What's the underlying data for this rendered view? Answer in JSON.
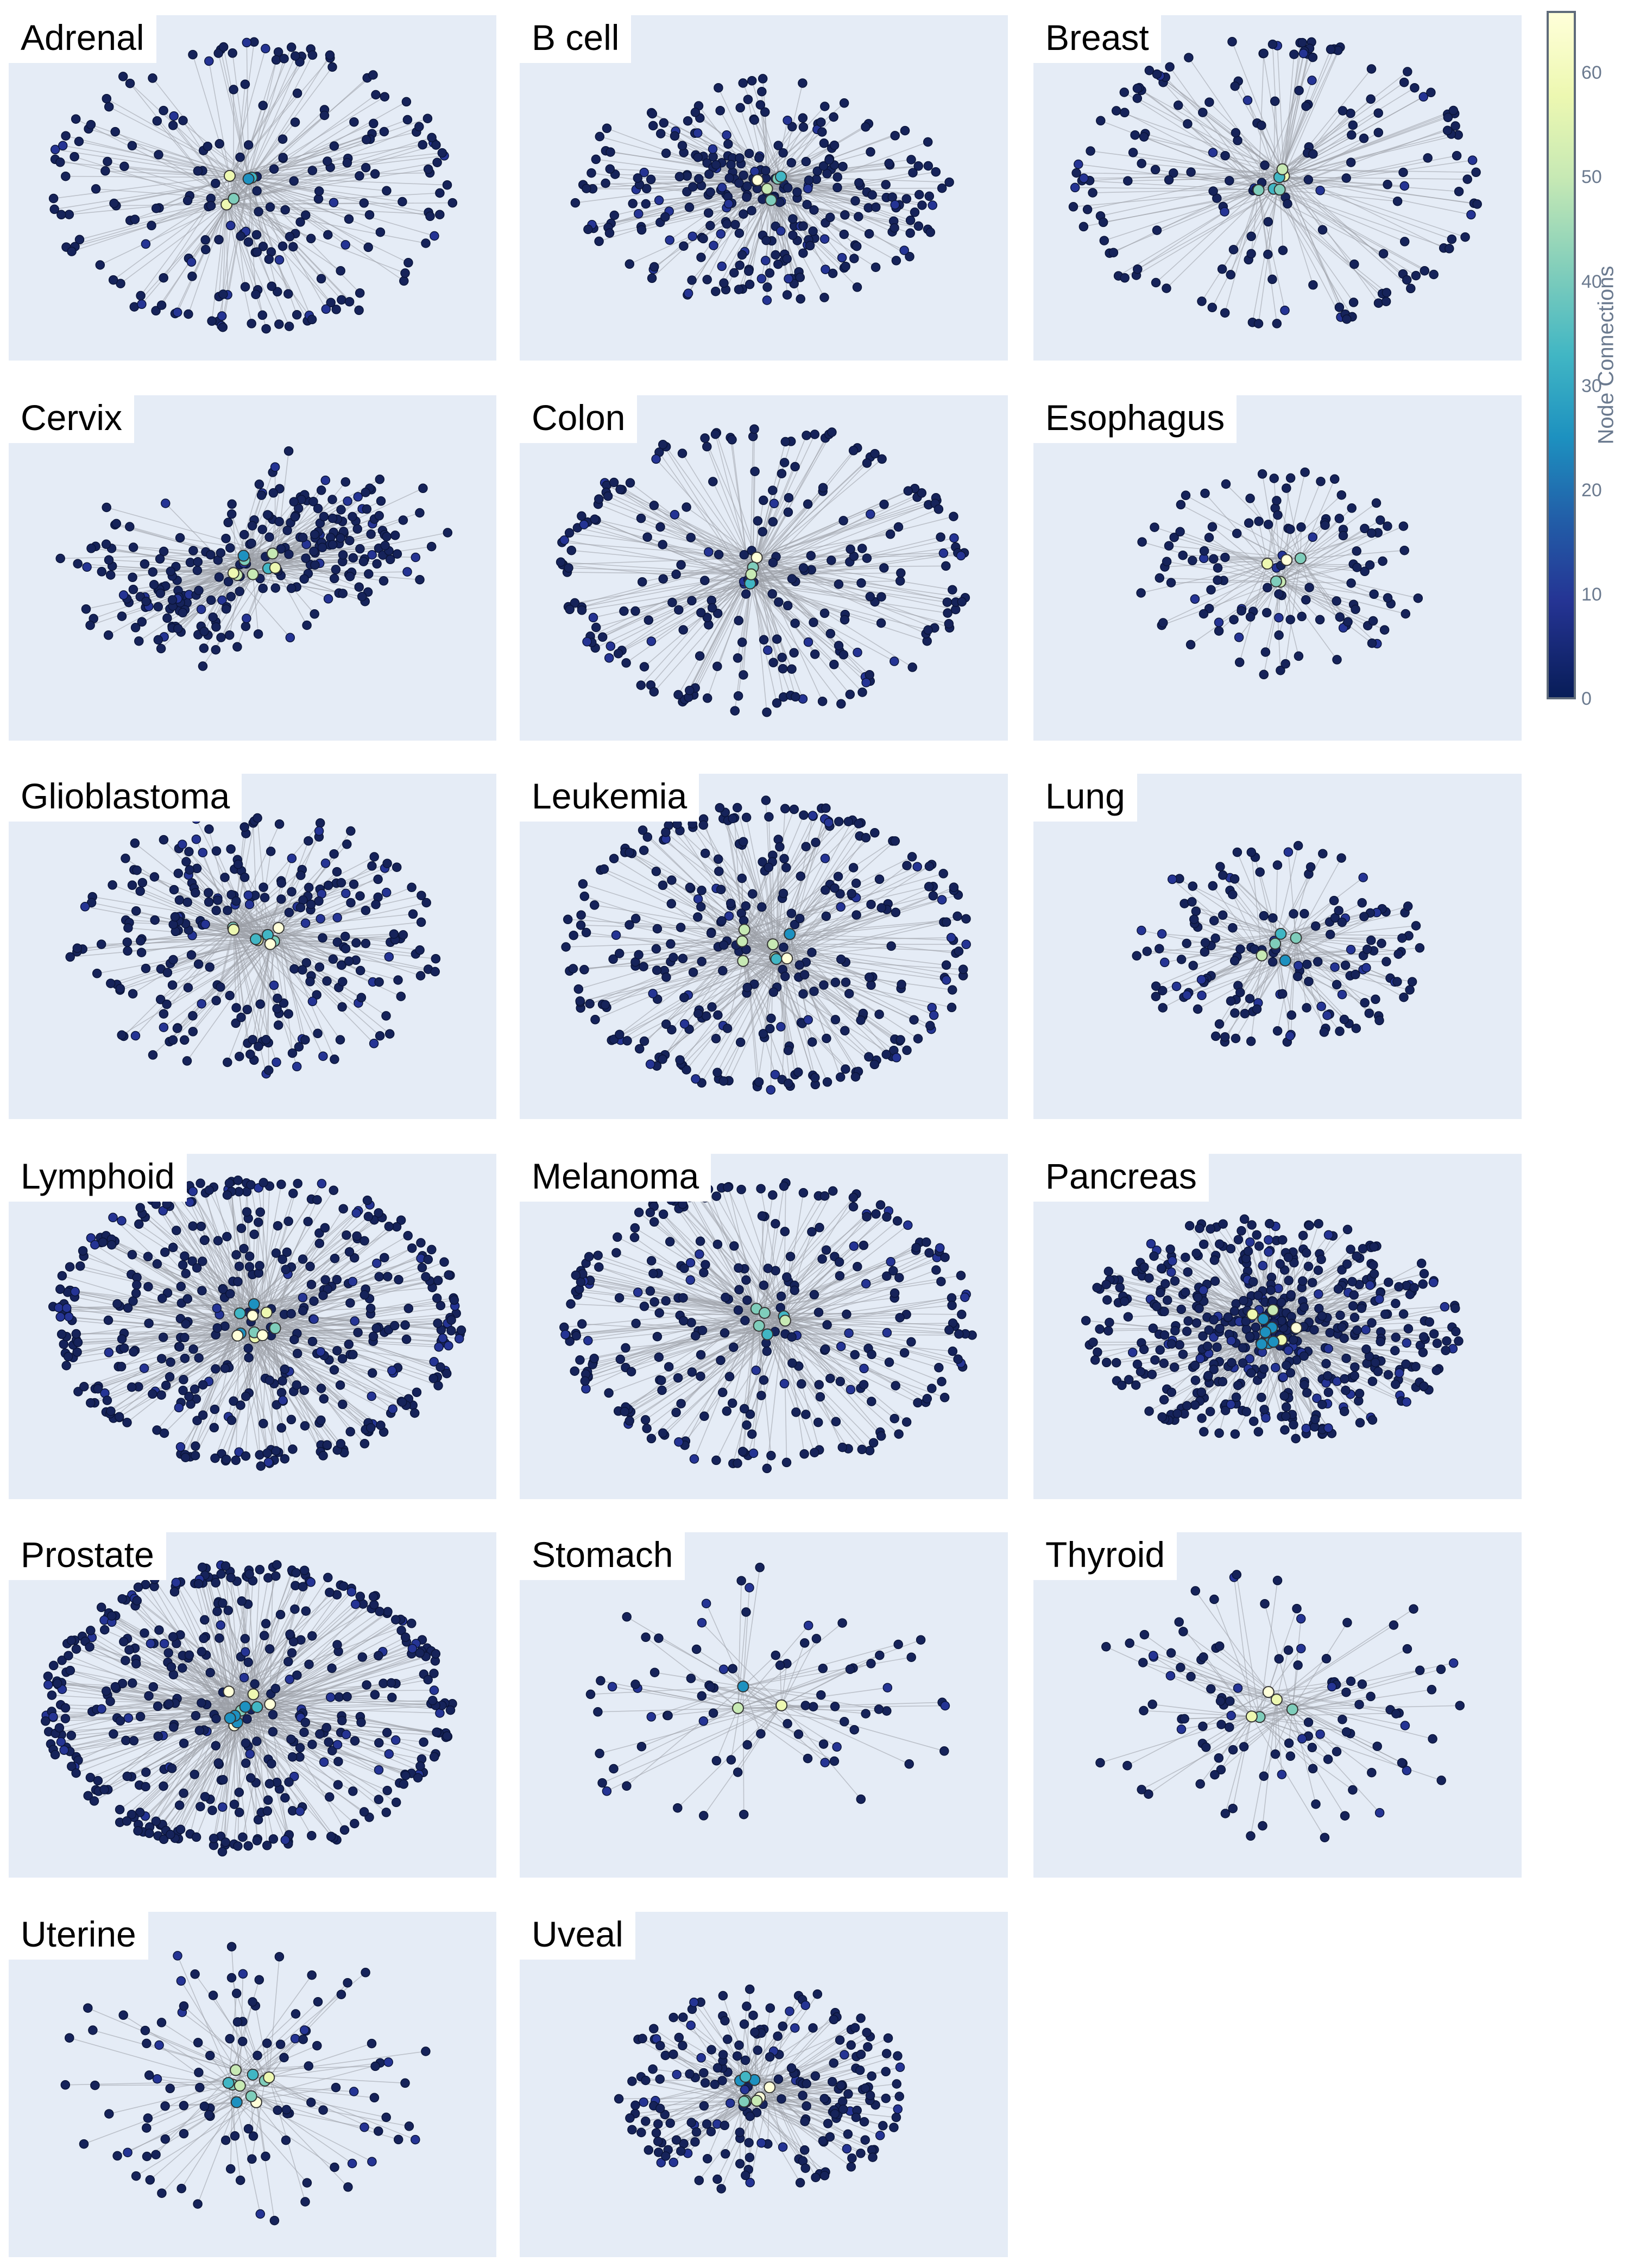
{
  "chart_data": {
    "type": "network",
    "panels": [
      {
        "name": "Adrenal",
        "layout": "ring",
        "nodes": 220,
        "hubs": 5
      },
      {
        "name": "B cell",
        "layout": "dense",
        "nodes": 300,
        "hubs": 5
      },
      {
        "name": "Breast",
        "layout": "ring",
        "nodes": 180,
        "hubs": 6
      },
      {
        "name": "Cervix",
        "layout": "twin",
        "nodes": 260,
        "hubs": 8
      },
      {
        "name": "Colon",
        "layout": "ring",
        "nodes": 240,
        "hubs": 4
      },
      {
        "name": "Esophagus",
        "layout": "compact",
        "nodes": 120,
        "hubs": 5
      },
      {
        "name": "Glioblastoma",
        "layout": "star",
        "nodes": 260,
        "hubs": 8
      },
      {
        "name": "Leukemia",
        "layout": "ring",
        "nodes": 320,
        "hubs": 8
      },
      {
        "name": "Lung",
        "layout": "compact",
        "nodes": 160,
        "hubs": 5
      },
      {
        "name": "Lymphoid",
        "layout": "ring",
        "nodes": 440,
        "hubs": 10
      },
      {
        "name": "Melanoma",
        "layout": "ring",
        "nodes": 300,
        "hubs": 6
      },
      {
        "name": "Pancreas",
        "layout": "dense",
        "nodes": 520,
        "hubs": 10
      },
      {
        "name": "Prostate",
        "layout": "ring",
        "nodes": 440,
        "hubs": 10
      },
      {
        "name": "Stomach",
        "layout": "sparse",
        "nodes": 80,
        "hubs": 3
      },
      {
        "name": "Thyroid",
        "layout": "sparse",
        "nodes": 110,
        "hubs": 5
      },
      {
        "name": "Uterine",
        "layout": "sparse",
        "nodes": 110,
        "hubs": 10
      },
      {
        "name": "Uveal",
        "layout": "compact",
        "nodes": 220,
        "hubs": 8
      }
    ],
    "colorbar": {
      "title": "Node Connections",
      "ticks": [
        "60",
        "50",
        "40",
        "30",
        "20",
        "10",
        "0"
      ],
      "range": [
        0,
        66
      ],
      "colorscale": "YlGnBu"
    }
  }
}
